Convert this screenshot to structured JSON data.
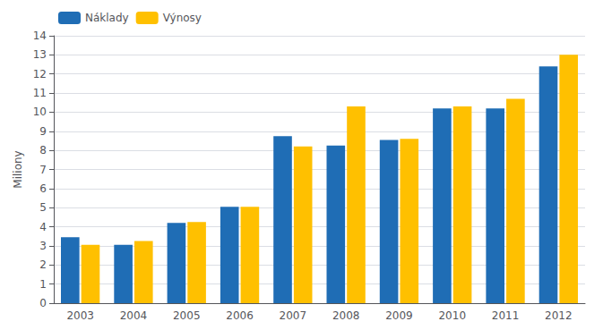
{
  "chart_data": {
    "type": "bar",
    "categories": [
      "2003",
      "2004",
      "2005",
      "2006",
      "2007",
      "2008",
      "2009",
      "2010",
      "2011",
      "2012"
    ],
    "series": [
      {
        "name": "Náklady",
        "color": "#1F6DB5",
        "values": [
          3.45,
          3.05,
          4.2,
          5.05,
          8.75,
          8.25,
          8.55,
          10.2,
          10.2,
          12.4
        ]
      },
      {
        "name": "Výnosy",
        "color": "#FFC000",
        "values": [
          3.05,
          3.25,
          4.25,
          5.05,
          8.2,
          10.3,
          8.6,
          10.3,
          10.7,
          13.0
        ]
      }
    ],
    "ylabel": "Miliony",
    "ylim": [
      0,
      14
    ],
    "yticks": [
      0,
      1,
      2,
      3,
      4,
      5,
      6,
      7,
      8,
      9,
      10,
      11,
      12,
      13,
      14
    ],
    "grid": true,
    "legend": "upper left"
  }
}
